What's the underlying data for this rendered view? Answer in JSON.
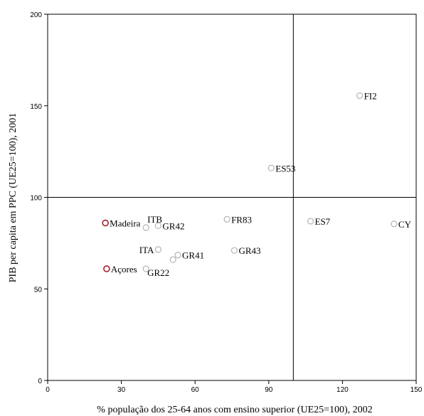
{
  "chart_data": {
    "type": "scatter",
    "xlabel": "% população dos 25-64 anos com ensino superior (UE25=100), 2002",
    "ylabel": "PIB per capita em PPC (UE25=100), 2001",
    "xlim": [
      0,
      150
    ],
    "ylim": [
      0,
      200
    ],
    "xticks": [
      0,
      30,
      60,
      90,
      120,
      150
    ],
    "yticks": [
      0,
      50,
      100,
      150,
      200
    ],
    "reference_lines": {
      "x": 100,
      "y": 100
    },
    "grid": false,
    "highlight_color": "#aa1f2a",
    "default_color": "#b3b3b3",
    "points": [
      {
        "label": "FI2",
        "x": 127,
        "y": 155.5,
        "highlight": false,
        "label_side": "right"
      },
      {
        "label": "ES53",
        "x": 91,
        "y": 116,
        "highlight": false,
        "label_side": "right"
      },
      {
        "label": "FR83",
        "x": 73,
        "y": 88,
        "highlight": false,
        "label_side": "right"
      },
      {
        "label": "ES7",
        "x": 107,
        "y": 87,
        "highlight": false,
        "label_side": "right"
      },
      {
        "label": "CY",
        "x": 141,
        "y": 85.5,
        "highlight": false,
        "label_side": "right"
      },
      {
        "label": "Madeira",
        "x": 23.5,
        "y": 86,
        "highlight": true,
        "label_side": "right"
      },
      {
        "label": "ITB",
        "x": 40,
        "y": 83.5,
        "highlight": false,
        "label_side": "above-right"
      },
      {
        "label": "GR42",
        "x": 45,
        "y": 84.5,
        "highlight": false,
        "label_side": "right"
      },
      {
        "label": "ITA",
        "x": 45,
        "y": 71.5,
        "highlight": false,
        "label_side": "left"
      },
      {
        "label": "GR43",
        "x": 76,
        "y": 71,
        "highlight": false,
        "label_side": "right"
      },
      {
        "label": "GR41",
        "x": 53,
        "y": 68.5,
        "highlight": false,
        "label_side": "right"
      },
      {
        "label": "",
        "x": 51,
        "y": 66,
        "highlight": false,
        "label_side": "none"
      },
      {
        "label": "Açores",
        "x": 24,
        "y": 61,
        "highlight": true,
        "label_side": "right"
      },
      {
        "label": "GR22",
        "x": 40,
        "y": 61,
        "highlight": false,
        "label_side": "below-right"
      }
    ]
  }
}
